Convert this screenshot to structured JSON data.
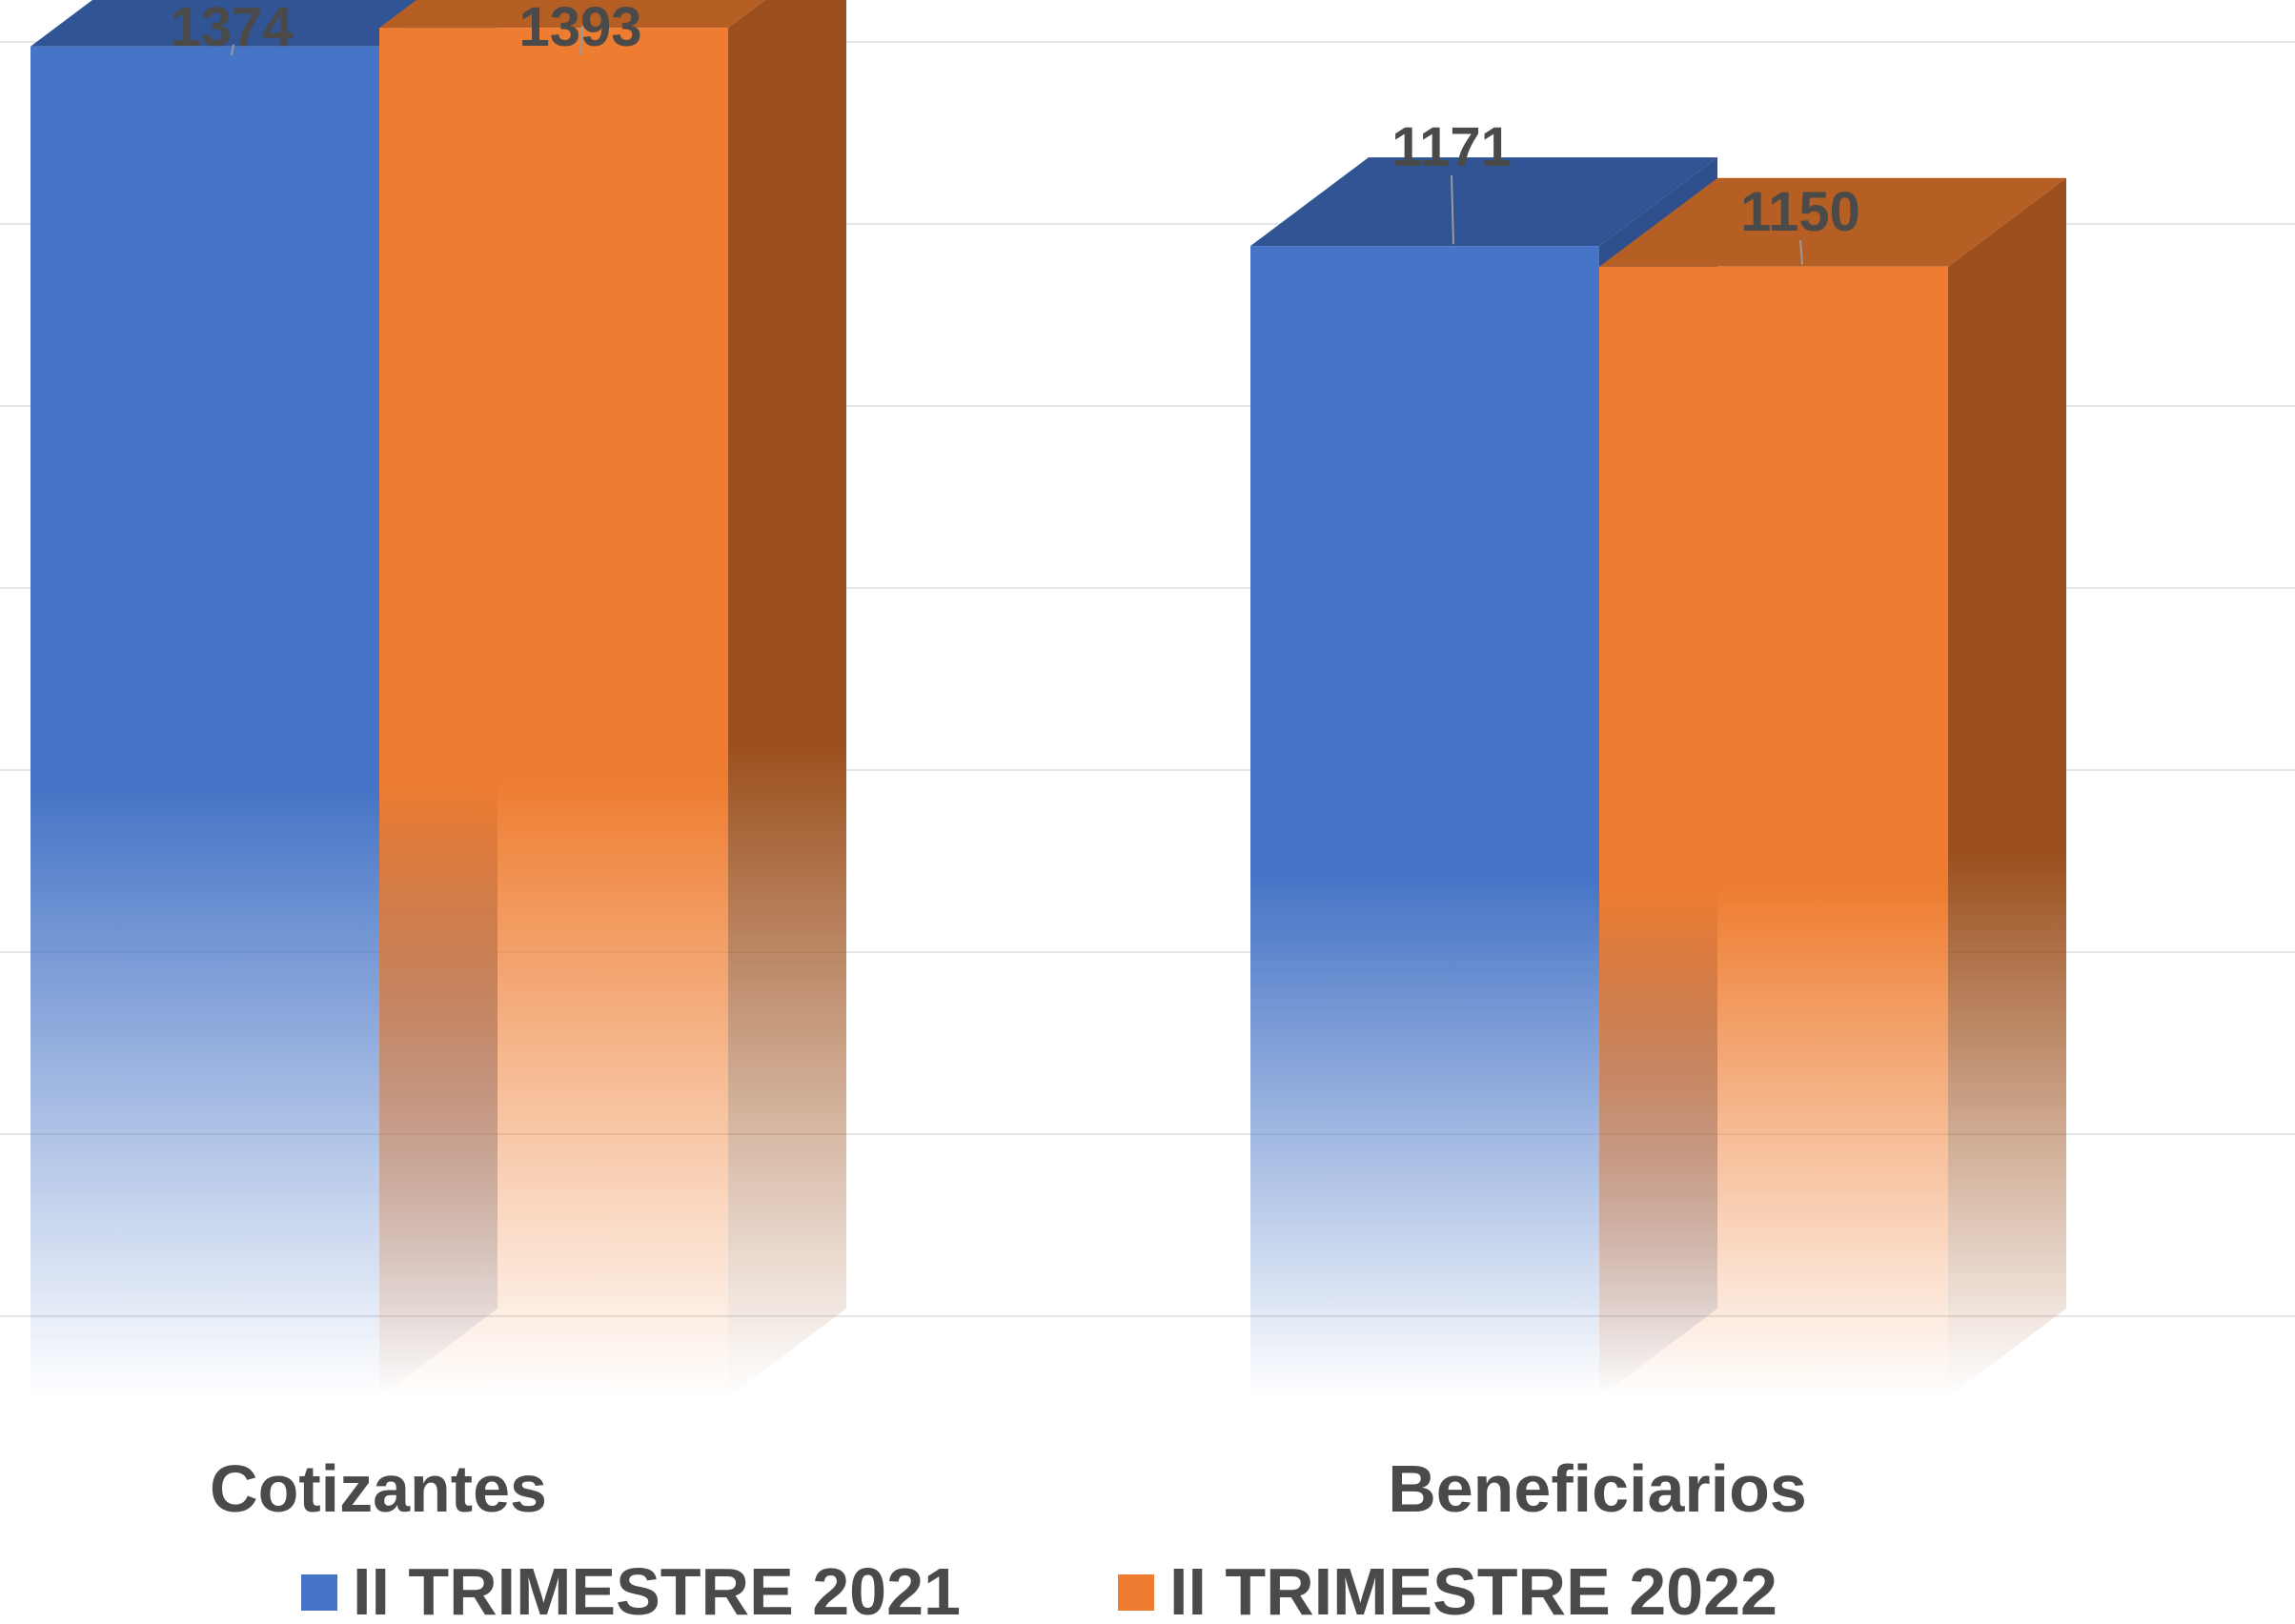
{
  "chart_data": {
    "type": "bar",
    "style": "3d-clustered-column",
    "categories": [
      "Cotizantes",
      "Beneficiarios"
    ],
    "series": [
      {
        "name": "II TRIMESTRE 2021",
        "values": [
          1374,
          1171
        ],
        "color": "#4674c6",
        "top_color": "#305494",
        "side_color": "#2d4f8c"
      },
      {
        "name": "II TRIMESTRE 2022",
        "values": [
          1393,
          1150
        ],
        "color": "#ee7d31",
        "top_color": "#b55f24",
        "side_color": "#9b4f1c"
      }
    ],
    "ylim": [
      0,
      1500
    ],
    "grid": true,
    "legend": "bottom",
    "data_labels": true,
    "title": "",
    "xlabel": "",
    "ylabel": ""
  }
}
